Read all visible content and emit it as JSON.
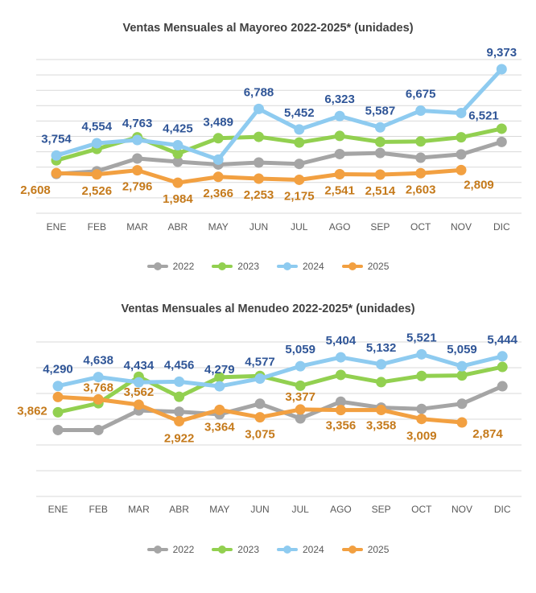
{
  "chart_data": [
    {
      "type": "line",
      "title": "Ventas Mensuales al Mayoreo 2022-2025* (unidades)",
      "categories": [
        "ENE",
        "FEB",
        "MAR",
        "ABR",
        "MAY",
        "JUN",
        "JUL",
        "AGO",
        "SEP",
        "OCT",
        "NOV",
        "DIC"
      ],
      "ylim": [
        0,
        10000
      ],
      "grid": true,
      "y_tick_labels_shown": false,
      "legend_position": "bottom",
      "series": [
        {
          "name": "2022",
          "color": "#a5a5a5",
          "labeled": false,
          "values": [
            2560,
            2730,
            3560,
            3350,
            3170,
            3300,
            3210,
            3850,
            3920,
            3610,
            3830,
            4640
          ]
        },
        {
          "name": "2023",
          "color": "#92d050",
          "labeled": false,
          "values": [
            3440,
            4180,
            4940,
            3880,
            4880,
            4970,
            4600,
            5030,
            4640,
            4670,
            4940,
            5500
          ]
        },
        {
          "name": "2024",
          "color": "#8ecbf0",
          "labeled": true,
          "label_color": "#2f5597",
          "values": [
            3754,
            4554,
            4763,
            4425,
            3489,
            6788,
            5452,
            6323,
            5587,
            6675,
            6521,
            9373
          ]
        },
        {
          "name": "2025",
          "color": "#f2a041",
          "labeled": true,
          "label_color": "#c57a1b",
          "values": [
            2608,
            2526,
            2796,
            1984,
            2366,
            2253,
            2175,
            2541,
            2514,
            2603,
            2809,
            null
          ]
        }
      ]
    },
    {
      "type": "line",
      "title": "Ventas Mensuales al Menudeo 2022-2025* (unidades)",
      "categories": [
        "ENE",
        "FEB",
        "MAR",
        "ABR",
        "MAY",
        "JUN",
        "JUL",
        "AGO",
        "SEP",
        "OCT",
        "NOV",
        "DIC"
      ],
      "ylim": [
        0,
        6000
      ],
      "grid": true,
      "y_tick_labels_shown": false,
      "legend_position": "bottom",
      "series": [
        {
          "name": "2022",
          "color": "#a5a5a5",
          "labeled": false,
          "values": [
            2580,
            2580,
            3340,
            3290,
            3190,
            3600,
            3030,
            3680,
            3450,
            3400,
            3600,
            4280
          ]
        },
        {
          "name": "2023",
          "color": "#92d050",
          "labeled": false,
          "values": [
            3270,
            3620,
            4650,
            3870,
            4630,
            4680,
            4300,
            4720,
            4440,
            4680,
            4700,
            5030
          ]
        },
        {
          "name": "2024",
          "color": "#8ecbf0",
          "labeled": true,
          "label_color": "#2f5597",
          "values": [
            4290,
            4638,
            4434,
            4456,
            4279,
            4577,
            5059,
            5404,
            5132,
            5521,
            5059,
            5444
          ]
        },
        {
          "name": "2025",
          "color": "#f2a041",
          "labeled": true,
          "label_color": "#c57a1b",
          "values": [
            3862,
            3768,
            3562,
            2922,
            3364,
            3075,
            3377,
            3356,
            3358,
            3009,
            2874,
            null
          ]
        }
      ]
    }
  ]
}
